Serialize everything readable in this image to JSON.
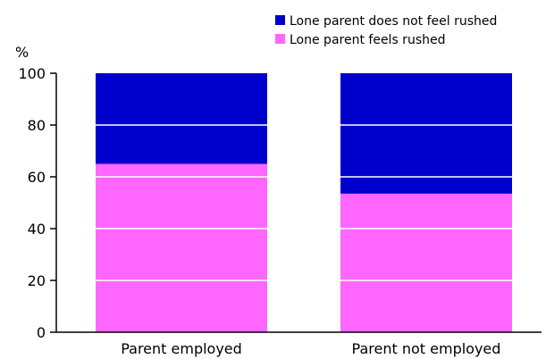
{
  "chart_data": {
    "type": "bar",
    "stacked": true,
    "unit_label": "%",
    "categories": [
      "Parent employed",
      "Parent not employed"
    ],
    "series": [
      {
        "name": "Lone parent feels rushed",
        "color": "#ff66ff",
        "values": [
          65,
          53.5
        ]
      },
      {
        "name": "Lone parent does not feel rushed",
        "color": "#0000cc",
        "values": [
          35,
          46.5
        ]
      }
    ],
    "ylim": [
      0,
      100
    ],
    "yticks": [
      "0",
      "20",
      "40",
      "60",
      "80",
      "100"
    ],
    "gridlines": "white lines inside bars",
    "legend": {
      "placement": "top-right",
      "order": [
        "Lone parent does not feel rushed",
        "Lone parent feels rushed"
      ]
    }
  }
}
